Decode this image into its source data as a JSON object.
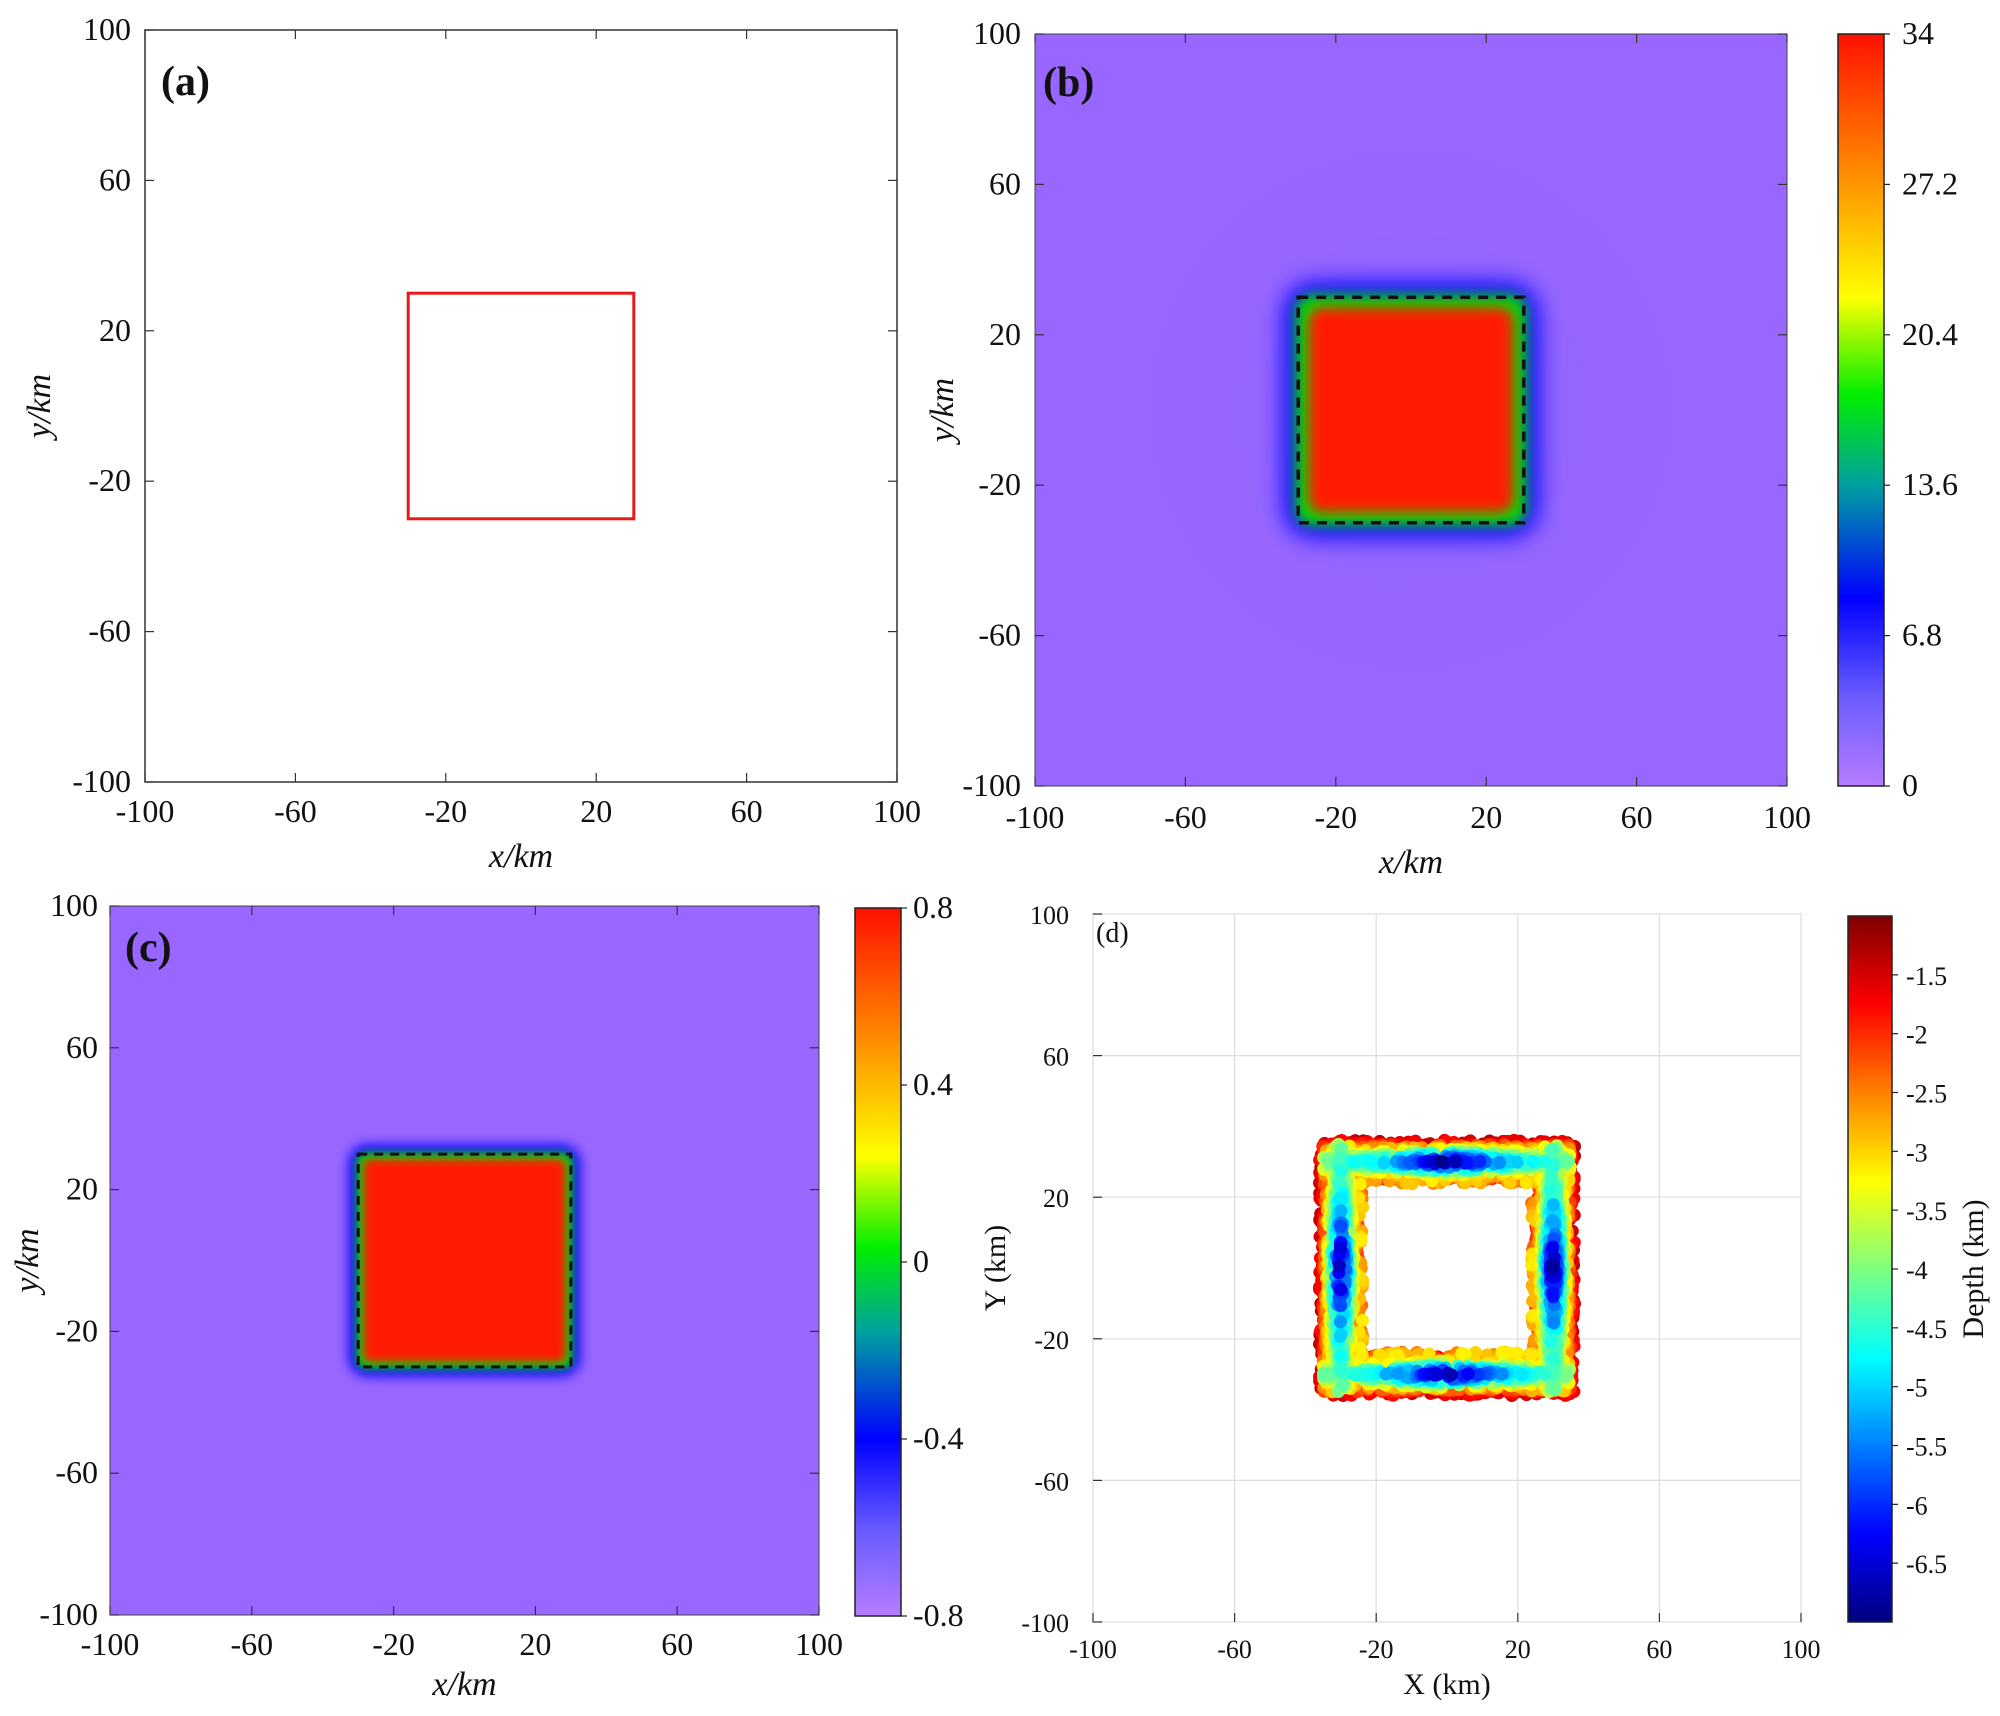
{
  "chart_data": [
    {
      "panel": "a",
      "type": "heatmap",
      "panel_label": "(a)",
      "xlabel": "x/km",
      "ylabel": "y/km",
      "xlim": [
        -100,
        100
      ],
      "ylim": [
        -100,
        100
      ],
      "xticks": [
        "-100",
        "-60",
        "-20",
        "20",
        "60",
        "100"
      ],
      "yticks": [
        "100",
        "60",
        "20",
        "-20",
        "-60",
        "-100"
      ],
      "outline": {
        "x": [
          -30,
          30
        ],
        "y": [
          -30,
          30
        ],
        "color": "#e41a1c"
      }
    },
    {
      "panel": "b",
      "type": "heatmap",
      "panel_label": "(b)",
      "xlabel": "x/km",
      "ylabel": "y/km",
      "xlim": [
        -100,
        100
      ],
      "ylim": [
        -100,
        100
      ],
      "xticks": [
        "-100",
        "-60",
        "-20",
        "20",
        "60",
        "100"
      ],
      "yticks": [
        "100",
        "60",
        "20",
        "-20",
        "-60",
        "-100"
      ],
      "colorbar": {
        "min": 0,
        "max": 34,
        "ticks": [
          "34",
          "27.2",
          "20.4",
          "13.6",
          "6.8",
          "0"
        ]
      },
      "block": {
        "x": [
          -30,
          30
        ],
        "y": [
          -30,
          30
        ],
        "value_inside": 34,
        "value_outside": 0
      }
    },
    {
      "panel": "c",
      "type": "heatmap",
      "panel_label": "(c)",
      "xlabel": "x/km",
      "ylabel": "y/km",
      "xlim": [
        -100,
        100
      ],
      "ylim": [
        -100,
        100
      ],
      "xticks": [
        "-100",
        "-60",
        "-20",
        "20",
        "60",
        "100"
      ],
      "yticks": [
        "100",
        "60",
        "20",
        "-20",
        "-60",
        "-100"
      ],
      "colorbar": {
        "min": -0.8,
        "max": 0.8,
        "ticks": [
          "0.8",
          "0.4",
          "0",
          "-0.4",
          "-0.8"
        ]
      },
      "block": {
        "x": [
          -30,
          30
        ],
        "y": [
          -30,
          30
        ],
        "value_inside": 0.8,
        "value_outside": -0.8
      }
    },
    {
      "panel": "d",
      "type": "scatter",
      "panel_label": "(d)",
      "xlabel": "X (km)",
      "ylabel": "Y (km)",
      "xlim": [
        -100,
        100
      ],
      "ylim": [
        -100,
        100
      ],
      "xticks": [
        "-100",
        "-60",
        "-20",
        "20",
        "60",
        "100"
      ],
      "yticks": [
        "100",
        "60",
        "20",
        "-20",
        "-60",
        "-100"
      ],
      "grid": true,
      "colorbar": {
        "label": "Depth (km)",
        "min": -7,
        "max": -1,
        "ticks": [
          "-1.5",
          "-2",
          "-2.5",
          "-3",
          "-3.5",
          "-4",
          "-4.5",
          "-5",
          "-5.5",
          "-6",
          "-6.5"
        ]
      },
      "frame": {
        "outer": [
          -35,
          35
        ],
        "inner": [
          -25,
          25
        ]
      }
    }
  ],
  "colors": {
    "jet_light": [
      "#9a6cfd",
      "#0000ff",
      "#00c0ff",
      "#00ff00",
      "#ffff00",
      "#ff8000",
      "#ff1100"
    ],
    "jet_dark": [
      "#00008f",
      "#0000ff",
      "#00ffff",
      "#ffff00",
      "#ff0000",
      "#7f0000"
    ],
    "background": "#9966ff"
  }
}
